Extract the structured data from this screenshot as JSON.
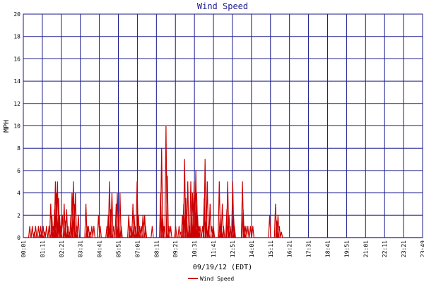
{
  "chart_data": {
    "type": "line",
    "title": "Wind Speed",
    "xlabel": "09/19/12 (EDT)",
    "ylabel": "MPH",
    "ylim": [
      0,
      20
    ],
    "yticks": [
      0,
      2,
      4,
      6,
      8,
      10,
      12,
      14,
      16,
      18,
      20
    ],
    "xlim_hours": [
      0.017,
      23.817
    ],
    "x_tick_labels": [
      "00:01",
      "01:11",
      "02:21",
      "03:31",
      "04:41",
      "05:51",
      "07:01",
      "08:11",
      "09:21",
      "10:31",
      "11:41",
      "12:51",
      "14:01",
      "15:11",
      "16:21",
      "17:31",
      "18:41",
      "19:51",
      "21:01",
      "22:11",
      "23:21",
      "23:49"
    ],
    "grid": true,
    "legend_position": "bottom-center",
    "colors": {
      "series": "#cc0000",
      "grid": "#1a1a8c",
      "title": "#1a1a8c"
    },
    "series": [
      {
        "name": "Wind Speed",
        "points": [
          [
            0.4,
            1
          ],
          [
            0.55,
            1
          ],
          [
            0.68,
            0.5
          ],
          [
            0.75,
            1
          ],
          [
            0.92,
            1
          ],
          [
            1.0,
            0.5
          ],
          [
            1.05,
            1
          ],
          [
            1.12,
            0.5
          ],
          [
            1.2,
            1
          ],
          [
            1.28,
            0.5
          ],
          [
            1.4,
            1
          ],
          [
            1.55,
            1
          ],
          [
            1.65,
            3
          ],
          [
            1.72,
            2
          ],
          [
            1.8,
            1
          ],
          [
            1.88,
            2.5
          ],
          [
            1.93,
            5
          ],
          [
            1.98,
            4
          ],
          [
            2.05,
            5
          ],
          [
            2.12,
            3.5
          ],
          [
            2.18,
            2
          ],
          [
            2.25,
            1
          ],
          [
            2.35,
            2
          ],
          [
            2.45,
            3
          ],
          [
            2.52,
            1.5
          ],
          [
            2.6,
            2.5
          ],
          [
            2.68,
            1
          ],
          [
            2.75,
            0.5
          ],
          [
            2.85,
            2
          ],
          [
            2.92,
            4
          ],
          [
            3.0,
            5
          ],
          [
            3.05,
            3
          ],
          [
            3.12,
            4
          ],
          [
            3.2,
            1
          ],
          [
            3.3,
            2
          ],
          [
            3.75,
            3
          ],
          [
            3.82,
            1
          ],
          [
            3.9,
            1
          ],
          [
            4.0,
            0.5
          ],
          [
            4.1,
            1
          ],
          [
            4.22,
            1
          ],
          [
            4.5,
            2
          ],
          [
            4.6,
            1
          ],
          [
            5.0,
            1
          ],
          [
            5.08,
            2
          ],
          [
            5.15,
            5
          ],
          [
            5.22,
            2.5
          ],
          [
            5.3,
            4
          ],
          [
            5.4,
            1
          ],
          [
            5.55,
            3
          ],
          [
            5.62,
            4
          ],
          [
            5.7,
            2
          ],
          [
            5.78,
            4
          ],
          [
            5.85,
            1
          ],
          [
            6.3,
            2
          ],
          [
            6.38,
            1
          ],
          [
            6.48,
            1
          ],
          [
            6.55,
            3
          ],
          [
            6.62,
            2
          ],
          [
            6.72,
            1
          ],
          [
            6.8,
            5
          ],
          [
            6.88,
            2
          ],
          [
            6.95,
            1
          ],
          [
            7.05,
            1
          ],
          [
            7.15,
            2
          ],
          [
            7.25,
            2
          ],
          [
            7.3,
            1
          ],
          [
            7.7,
            1
          ],
          [
            8.2,
            4
          ],
          [
            8.26,
            8
          ],
          [
            8.32,
            2
          ],
          [
            8.4,
            1
          ],
          [
            8.52,
            10
          ],
          [
            8.6,
            5.5
          ],
          [
            8.7,
            1
          ],
          [
            8.8,
            1
          ],
          [
            9.1,
            1
          ],
          [
            9.3,
            1
          ],
          [
            9.4,
            0.5
          ],
          [
            9.5,
            2
          ],
          [
            9.58,
            3
          ],
          [
            9.63,
            7
          ],
          [
            9.7,
            3.5
          ],
          [
            9.75,
            2
          ],
          [
            9.82,
            5
          ],
          [
            9.9,
            1
          ],
          [
            10.0,
            5
          ],
          [
            10.05,
            2.5
          ],
          [
            10.1,
            4
          ],
          [
            10.15,
            1
          ],
          [
            10.2,
            5
          ],
          [
            10.25,
            3
          ],
          [
            10.3,
            6
          ],
          [
            10.35,
            4
          ],
          [
            10.4,
            2
          ],
          [
            10.48,
            1
          ],
          [
            10.55,
            1
          ],
          [
            10.7,
            1
          ],
          [
            10.8,
            3.5
          ],
          [
            10.85,
            7
          ],
          [
            10.92,
            2
          ],
          [
            10.98,
            5
          ],
          [
            11.05,
            1
          ],
          [
            11.15,
            3
          ],
          [
            11.25,
            1
          ],
          [
            11.35,
            1
          ],
          [
            11.7,
            5
          ],
          [
            11.75,
            2
          ],
          [
            11.8,
            1
          ],
          [
            11.88,
            3
          ],
          [
            11.95,
            1
          ],
          [
            12.15,
            2.5
          ],
          [
            12.2,
            5
          ],
          [
            12.28,
            2
          ],
          [
            12.35,
            1
          ],
          [
            12.5,
            5
          ],
          [
            12.55,
            2
          ],
          [
            12.6,
            1
          ],
          [
            13.08,
            5
          ],
          [
            13.12,
            2.5
          ],
          [
            13.2,
            1
          ],
          [
            13.28,
            1
          ],
          [
            13.4,
            1
          ],
          [
            13.55,
            1
          ],
          [
            13.7,
            1
          ],
          [
            14.7,
            2
          ],
          [
            15.05,
            3
          ],
          [
            15.12,
            1.5
          ],
          [
            15.2,
            2
          ],
          [
            15.28,
            1
          ],
          [
            15.4,
            0.5
          ]
        ]
      }
    ]
  }
}
